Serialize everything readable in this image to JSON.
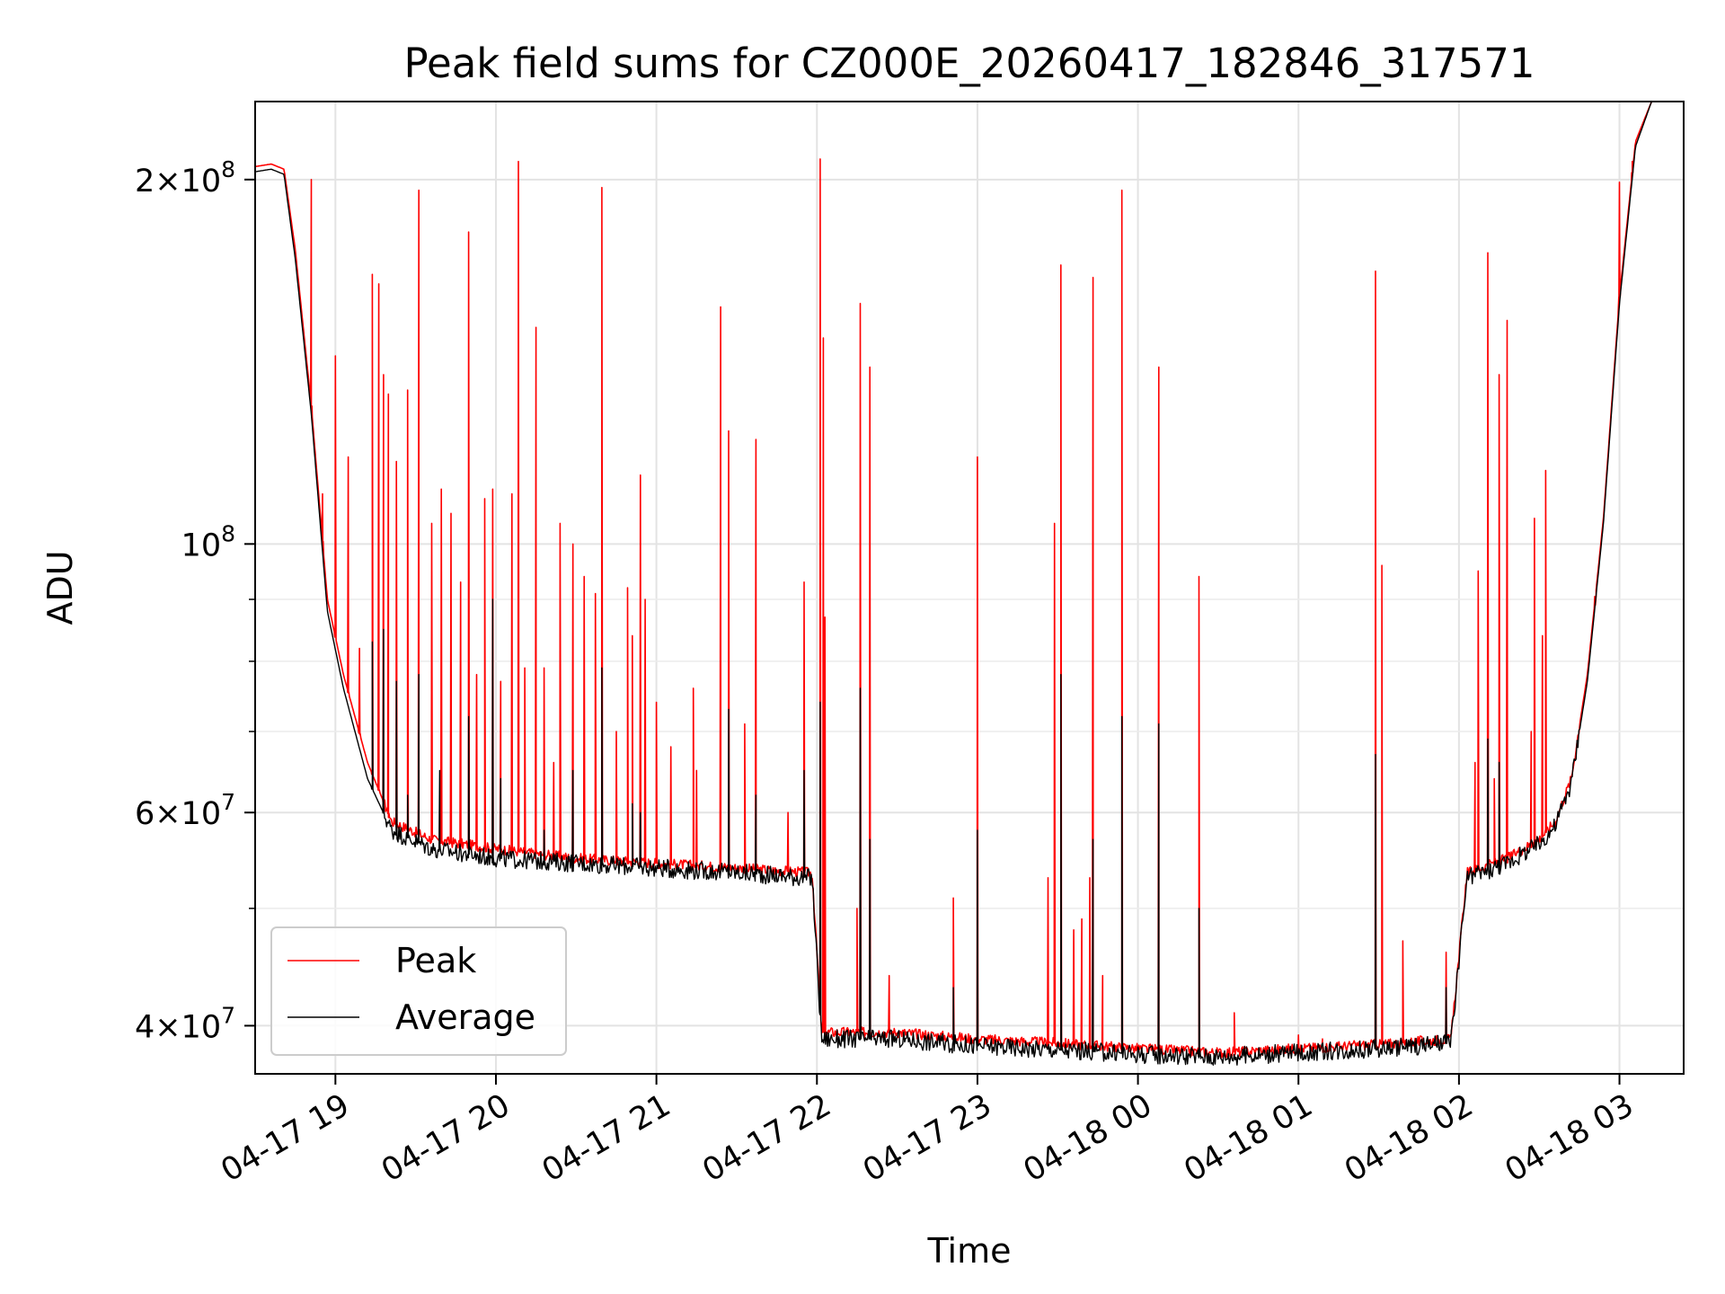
{
  "chart_data": {
    "type": "line",
    "title": "Peak field sums for CZ000E_20260417_182846_317571",
    "xlabel": "Time",
    "ylabel": "ADU",
    "yscale": "log",
    "ylim": [
      36500000,
      232000000
    ],
    "xlim": [
      18.5,
      27.4
    ],
    "grid": true,
    "legend_position": "lower-left",
    "x_ticks": [
      {
        "value": 19,
        "label": "04-17 19"
      },
      {
        "value": 20,
        "label": "04-17 20"
      },
      {
        "value": 21,
        "label": "04-17 21"
      },
      {
        "value": 22,
        "label": "04-17 22"
      },
      {
        "value": 23,
        "label": "04-17 23"
      },
      {
        "value": 24,
        "label": "04-18 00"
      },
      {
        "value": 25,
        "label": "04-18 01"
      },
      {
        "value": 26,
        "label": "04-18 02"
      },
      {
        "value": 27,
        "label": "04-18 03"
      }
    ],
    "y_ticks": [
      {
        "value": 40000000,
        "mantissa": "4",
        "exp": "7"
      },
      {
        "value": 60000000,
        "mantissa": "6",
        "exp": "7"
      },
      {
        "value": 100000000,
        "mantissa": "",
        "exp": "8"
      },
      {
        "value": 200000000,
        "mantissa": "2",
        "exp": "8"
      }
    ],
    "y_minor_ticks": [
      50000000,
      70000000,
      80000000,
      90000000
    ],
    "series": [
      {
        "name": "Peak",
        "color": "#ff0000",
        "baseline": [
          [
            18.5,
            205000000
          ],
          [
            18.6,
            206000000
          ],
          [
            18.68,
            204000000
          ],
          [
            18.75,
            175000000
          ],
          [
            18.85,
            130000000
          ],
          [
            18.95,
            90000000
          ],
          [
            19.05,
            78000000
          ],
          [
            19.2,
            66000000
          ],
          [
            19.35,
            59000000
          ],
          [
            19.6,
            57000000
          ],
          [
            20.0,
            56000000
          ],
          [
            20.5,
            55000000
          ],
          [
            21.0,
            54500000
          ],
          [
            21.5,
            54000000
          ],
          [
            21.97,
            53500000
          ],
          [
            22.03,
            39500000
          ],
          [
            22.5,
            39500000
          ],
          [
            23.0,
            39000000
          ],
          [
            23.5,
            38700000
          ],
          [
            24.0,
            38300000
          ],
          [
            24.5,
            38000000
          ],
          [
            25.0,
            38300000
          ],
          [
            25.5,
            38600000
          ],
          [
            25.95,
            39000000
          ],
          [
            26.05,
            53500000
          ],
          [
            26.3,
            55000000
          ],
          [
            26.5,
            57000000
          ],
          [
            26.6,
            59000000
          ],
          [
            26.7,
            64000000
          ],
          [
            26.8,
            78000000
          ],
          [
            26.9,
            105000000
          ],
          [
            27.0,
            160000000
          ],
          [
            27.1,
            215000000
          ],
          [
            27.2,
            232000000
          ],
          [
            27.4,
            232000000
          ]
        ],
        "spikes": [
          [
            18.85,
            200000000
          ],
          [
            18.92,
            110000000
          ],
          [
            19.0,
            143000000
          ],
          [
            19.08,
            118000000
          ],
          [
            19.15,
            82000000
          ],
          [
            19.23,
            167000000
          ],
          [
            19.27,
            164000000
          ],
          [
            19.3,
            138000000
          ],
          [
            19.33,
            133000000
          ],
          [
            19.38,
            117000000
          ],
          [
            19.45,
            134000000
          ],
          [
            19.52,
            196000000
          ],
          [
            19.6,
            104000000
          ],
          [
            19.66,
            111000000
          ],
          [
            19.72,
            106000000
          ],
          [
            19.78,
            93000000
          ],
          [
            19.83,
            181000000
          ],
          [
            19.88,
            78000000
          ],
          [
            19.93,
            109000000
          ],
          [
            19.98,
            111000000
          ],
          [
            20.03,
            77000000
          ],
          [
            20.1,
            110000000
          ],
          [
            20.14,
            207000000
          ],
          [
            20.18,
            79000000
          ],
          [
            20.25,
            151000000
          ],
          [
            20.3,
            79000000
          ],
          [
            20.36,
            66000000
          ],
          [
            20.4,
            104000000
          ],
          [
            20.48,
            100000000
          ],
          [
            20.55,
            94000000
          ],
          [
            20.62,
            91000000
          ],
          [
            20.66,
            197000000
          ],
          [
            20.75,
            70000000
          ],
          [
            20.82,
            92000000
          ],
          [
            20.85,
            84000000
          ],
          [
            20.9,
            114000000
          ],
          [
            20.93,
            90000000
          ],
          [
            21.0,
            74000000
          ],
          [
            21.09,
            68000000
          ],
          [
            21.23,
            76000000
          ],
          [
            21.25,
            65000000
          ],
          [
            21.4,
            157000000
          ],
          [
            21.45,
            124000000
          ],
          [
            21.55,
            71000000
          ],
          [
            21.62,
            122000000
          ],
          [
            21.82,
            60000000
          ],
          [
            21.92,
            93000000
          ],
          [
            22.02,
            208000000
          ],
          [
            22.04,
            148000000
          ],
          [
            22.05,
            87000000
          ],
          [
            22.25,
            50000000
          ],
          [
            22.27,
            158000000
          ],
          [
            22.33,
            140000000
          ],
          [
            22.45,
            44000000
          ],
          [
            22.85,
            51000000
          ],
          [
            23.0,
            118000000
          ],
          [
            23.44,
            53000000
          ],
          [
            23.48,
            104000000
          ],
          [
            23.52,
            170000000
          ],
          [
            23.6,
            48000000
          ],
          [
            23.65,
            49000000
          ],
          [
            23.7,
            53000000
          ],
          [
            23.72,
            166000000
          ],
          [
            23.78,
            44000000
          ],
          [
            23.9,
            196000000
          ],
          [
            24.13,
            140000000
          ],
          [
            24.38,
            94000000
          ],
          [
            24.6,
            41000000
          ],
          [
            25.0,
            39300000
          ],
          [
            25.15,
            39000000
          ],
          [
            25.48,
            168000000
          ],
          [
            25.52,
            96000000
          ],
          [
            25.65,
            47000000
          ],
          [
            25.92,
            46000000
          ],
          [
            26.1,
            66000000
          ],
          [
            26.12,
            95000000
          ],
          [
            26.18,
            174000000
          ],
          [
            26.22,
            64000000
          ],
          [
            26.25,
            138000000
          ],
          [
            26.3,
            153000000
          ],
          [
            26.45,
            70000000
          ],
          [
            26.47,
            105000000
          ],
          [
            26.52,
            84000000
          ],
          [
            26.54,
            115000000
          ],
          [
            26.85,
            89000000
          ],
          [
            27.0,
            199000000
          ],
          [
            27.08,
            207000000
          ]
        ]
      },
      {
        "name": "Average",
        "color": "#000000",
        "baseline": [
          [
            18.5,
            203000000
          ],
          [
            18.6,
            204000000
          ],
          [
            18.68,
            202000000
          ],
          [
            18.75,
            172000000
          ],
          [
            18.85,
            128000000
          ],
          [
            18.95,
            88000000
          ],
          [
            19.05,
            76000000
          ],
          [
            19.2,
            64000000
          ],
          [
            19.35,
            58000000
          ],
          [
            19.6,
            56000000
          ],
          [
            20.0,
            55000000
          ],
          [
            20.5,
            54500000
          ],
          [
            21.0,
            54000000
          ],
          [
            21.5,
            53500000
          ],
          [
            21.97,
            53000000
          ],
          [
            22.03,
            39000000
          ],
          [
            22.5,
            39000000
          ],
          [
            23.0,
            38500000
          ],
          [
            23.5,
            38200000
          ],
          [
            24.0,
            37900000
          ],
          [
            24.5,
            37700000
          ],
          [
            25.0,
            38000000
          ],
          [
            25.5,
            38300000
          ],
          [
            25.95,
            38700000
          ],
          [
            26.05,
            53000000
          ],
          [
            26.3,
            54500000
          ],
          [
            26.5,
            56500000
          ],
          [
            26.6,
            58500000
          ],
          [
            26.7,
            63500000
          ],
          [
            26.8,
            77000000
          ],
          [
            26.9,
            104000000
          ],
          [
            27.0,
            158000000
          ],
          [
            27.1,
            213000000
          ],
          [
            27.2,
            232000000
          ],
          [
            27.4,
            232000000
          ]
        ],
        "spikes": [
          [
            19.23,
            83000000
          ],
          [
            19.3,
            85000000
          ],
          [
            19.38,
            77000000
          ],
          [
            19.45,
            62000000
          ],
          [
            19.52,
            78000000
          ],
          [
            19.65,
            65000000
          ],
          [
            19.83,
            72000000
          ],
          [
            19.98,
            90000000
          ],
          [
            20.03,
            64000000
          ],
          [
            20.3,
            58000000
          ],
          [
            20.48,
            65000000
          ],
          [
            20.66,
            79000000
          ],
          [
            20.85,
            61000000
          ],
          [
            20.9,
            60000000
          ],
          [
            21.45,
            73000000
          ],
          [
            21.62,
            62000000
          ],
          [
            21.92,
            65000000
          ],
          [
            22.02,
            74000000
          ],
          [
            22.27,
            76000000
          ],
          [
            22.33,
            57000000
          ],
          [
            22.85,
            43000000
          ],
          [
            23.0,
            58000000
          ],
          [
            23.52,
            78000000
          ],
          [
            23.72,
            57000000
          ],
          [
            23.9,
            72000000
          ],
          [
            24.13,
            71000000
          ],
          [
            24.38,
            50000000
          ],
          [
            25.48,
            67000000
          ],
          [
            25.92,
            43000000
          ],
          [
            26.18,
            69000000
          ],
          [
            26.25,
            66000000
          ]
        ]
      }
    ]
  }
}
